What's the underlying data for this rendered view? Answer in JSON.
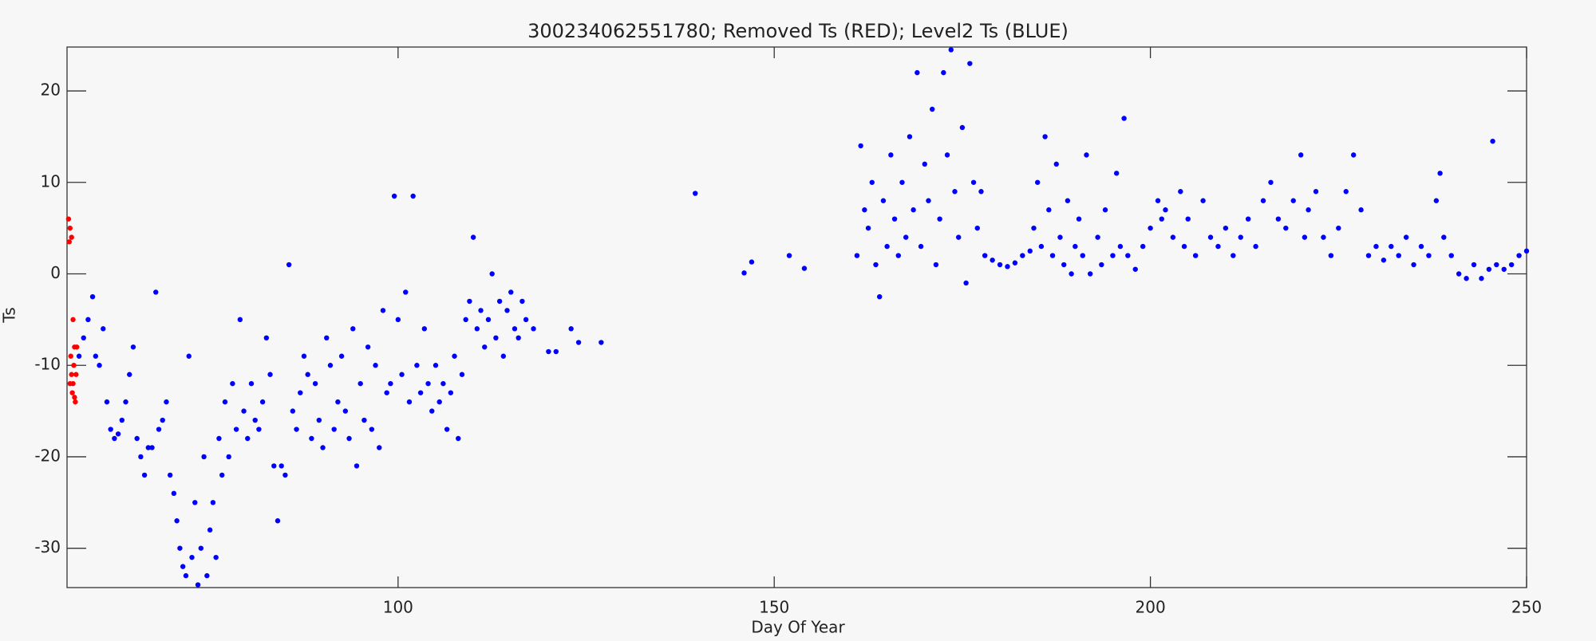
{
  "chart_data": {
    "type": "scatter",
    "title": "300234062551780; Removed Ts (RED); Level2 Ts (BLUE)",
    "x_label": "Day Of Year",
    "y_label": "Ts",
    "xlim": [
      56,
      250
    ],
    "ylim": [
      -34.3,
      24.8
    ],
    "xticks": [
      100,
      150,
      200,
      250
    ],
    "yticks": [
      -30,
      -20,
      -10,
      0,
      10,
      20
    ],
    "series": [
      {
        "color": "#ff0000",
        "x": [
          56.2,
          56.4,
          56.6,
          56.3,
          56.8,
          57.0,
          56.5,
          56.9,
          57.2,
          56.4,
          56.7,
          57.1,
          57.3,
          56.6,
          57.0,
          56.8
        ],
        "values": [
          6,
          5,
          4,
          3.5,
          -5,
          -8,
          -9,
          -10,
          -11,
          -12,
          -13,
          -14,
          -8,
          -11,
          -13.5,
          -12
        ]
      },
      {
        "color": "#0000ff",
        "x": [
          57.6,
          58.2,
          58.8,
          59.4,
          59.8,
          60.3,
          60.8,
          61.3,
          61.8,
          62.3,
          62.8,
          63.3,
          63.8,
          64.3,
          64.8,
          65.3,
          65.8,
          66.3,
          66.8,
          67.3,
          67.8,
          68.2,
          68.7,
          69.2,
          69.7,
          70.2,
          70.6,
          71,
          71.4,
          71.8,
          72.2,
          72.6,
          73,
          73.4,
          73.8,
          74.2,
          74.6,
          75,
          75.4,
          75.8,
          76.2,
          76.6,
          77,
          77.5,
          78,
          78.5,
          79,
          79.5,
          80,
          80.5,
          81,
          81.5,
          82,
          82.5,
          83,
          83.5,
          84,
          84.5,
          85,
          85.5,
          86,
          86.5,
          87,
          87.5,
          88,
          88.5,
          89,
          89.5,
          90,
          90.5,
          91,
          91.5,
          92,
          92.5,
          93,
          93.5,
          94,
          94.5,
          95,
          95.5,
          96,
          96.5,
          97,
          97.5,
          98,
          98.5,
          99,
          99.5,
          100,
          100.5,
          101,
          101.5,
          102,
          102.5,
          103,
          103.5,
          104,
          104.5,
          105,
          105.5,
          106,
          106.5,
          107,
          107.5,
          108,
          108.5,
          109,
          109.5,
          110,
          110.5,
          111,
          111.5,
          112,
          112.5,
          113,
          113.5,
          114,
          114.5,
          115,
          115.5,
          116,
          116.5,
          117,
          118,
          120,
          121,
          123,
          124,
          127,
          139.5,
          146,
          147,
          152,
          154,
          161,
          161.5,
          162,
          162.5,
          163,
          163.5,
          164,
          164.5,
          165,
          165.5,
          166,
          166.5,
          167,
          167.5,
          168,
          168.5,
          169,
          169.5,
          170,
          170.5,
          171,
          171.5,
          172,
          172.5,
          173,
          173.5,
          174,
          174.5,
          175,
          175.5,
          176,
          176.5,
          177,
          177.5,
          178,
          179,
          180,
          181,
          182,
          183,
          184,
          184.5,
          185,
          185.5,
          186,
          186.5,
          187,
          187.5,
          188,
          188.5,
          189,
          189.5,
          190,
          190.5,
          191,
          191.5,
          192,
          193,
          193.5,
          194,
          195,
          195.5,
          196,
          196.5,
          197,
          198,
          199,
          200,
          201,
          201.5,
          202,
          203,
          204,
          204.5,
          205,
          206,
          207,
          208,
          209,
          210,
          211,
          212,
          213,
          214,
          215,
          216,
          217,
          218,
          219,
          220,
          220.5,
          221,
          222,
          223,
          224,
          225,
          226,
          227,
          228,
          229,
          230,
          231,
          232,
          233,
          234,
          235,
          236,
          237,
          238,
          238.5,
          239,
          240,
          241,
          242,
          243,
          244,
          245,
          245.5,
          246,
          247,
          248,
          249,
          250
        ],
        "values": [
          -9,
          -7,
          -5,
          -2.5,
          -9,
          -10,
          -6,
          -14,
          -17,
          -18,
          -17.5,
          -16,
          -14,
          -11,
          -8,
          -18,
          -20,
          -22,
          -19,
          -19,
          -2,
          -17,
          -16,
          -14,
          -22,
          -24,
          -27,
          -30,
          -32,
          -33,
          -9,
          -31,
          -25,
          -34,
          -30,
          -20,
          -33,
          -28,
          -25,
          -31,
          -18,
          -22,
          -14,
          -20,
          -12,
          -17,
          -5,
          -15,
          -18,
          -12,
          -16,
          -17,
          -14,
          -7,
          -11,
          -21,
          -27,
          -21,
          -22,
          1,
          -15,
          -17,
          -13,
          -9,
          -11,
          -18,
          -12,
          -16,
          -19,
          -7,
          -10,
          -17,
          -14,
          -9,
          -15,
          -18,
          -6,
          -21,
          -12,
          -16,
          -8,
          -17,
          -10,
          -19,
          -4,
          -13,
          -12,
          8.5,
          -5,
          -11,
          -2,
          -14,
          8.5,
          -10,
          -13,
          -6,
          -12,
          -15,
          -10,
          -14,
          -12,
          -17,
          -13,
          -9,
          -18,
          -11,
          -5,
          -3,
          4,
          -6,
          -4,
          -8,
          -5,
          0,
          -7,
          -3,
          -9,
          -4,
          -2,
          -6,
          -7,
          -3,
          -5,
          -6,
          -8.5,
          -8.5,
          -6,
          -7.5,
          -7.5,
          8.8,
          0.1,
          1.3,
          2,
          0.6,
          2,
          14,
          7,
          5,
          10,
          1,
          -2.5,
          8,
          3,
          13,
          6,
          2,
          10,
          4,
          15,
          7,
          22,
          3,
          12,
          8,
          18,
          1,
          6,
          22,
          13,
          24.5,
          9,
          4,
          16,
          -1,
          23,
          10,
          5,
          9,
          2,
          1.5,
          1,
          0.8,
          1.2,
          2,
          2.5,
          5,
          10,
          3,
          15,
          7,
          2,
          12,
          4,
          1,
          8,
          0,
          3,
          6,
          2,
          13,
          0,
          4,
          1,
          7,
          2,
          11,
          3,
          17,
          2,
          0.5,
          3,
          5,
          8,
          6,
          7,
          4,
          9,
          3,
          6,
          2,
          8,
          4,
          3,
          5,
          2,
          4,
          6,
          3,
          8,
          10,
          6,
          5,
          8,
          13,
          4,
          7,
          9,
          4,
          2,
          5,
          9,
          13,
          7,
          2,
          3,
          1.5,
          3,
          2,
          4,
          1,
          3,
          2,
          8,
          11,
          4,
          2,
          0,
          -0.5,
          1,
          -0.5,
          0.5,
          14.5,
          1,
          0.5,
          1,
          2,
          2.5
        ]
      }
    ]
  }
}
